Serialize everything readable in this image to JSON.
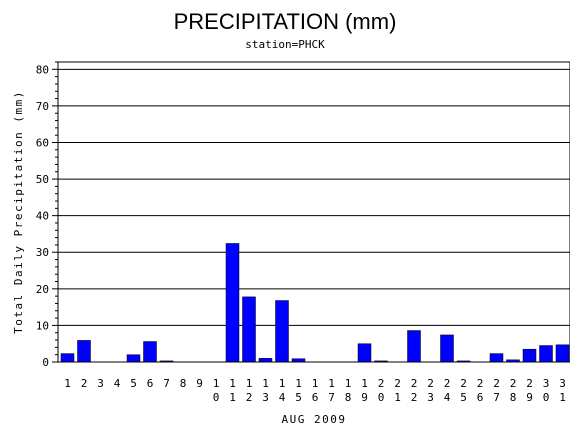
{
  "chart_data": {
    "type": "bar",
    "title": "PRECIPITATION (mm)",
    "subtitle": "station=PHCK",
    "xlabel": "AUG 2009",
    "ylabel": "Total Daily Precipitation (mm)",
    "ylim": [
      0,
      82
    ],
    "yticks": [
      0,
      10,
      20,
      30,
      40,
      50,
      60,
      70,
      80
    ],
    "grid": true,
    "bar_color": "#0000ff",
    "categories": [
      [
        "1"
      ],
      [
        "2"
      ],
      [
        "3"
      ],
      [
        "4"
      ],
      [
        "5"
      ],
      [
        "6"
      ],
      [
        "7"
      ],
      [
        "8"
      ],
      [
        "9"
      ],
      [
        "1",
        "0"
      ],
      [
        "1",
        "1"
      ],
      [
        "1",
        "2"
      ],
      [
        "1",
        "3"
      ],
      [
        "1",
        "4"
      ],
      [
        "1",
        "5"
      ],
      [
        "1",
        "6"
      ],
      [
        "1",
        "7"
      ],
      [
        "1",
        "8"
      ],
      [
        "1",
        "9"
      ],
      [
        "2",
        "0"
      ],
      [
        "2",
        "1"
      ],
      [
        "2",
        "2"
      ],
      [
        "2",
        "3"
      ],
      [
        "2",
        "4"
      ],
      [
        "2",
        "5"
      ],
      [
        "2",
        "6"
      ],
      [
        "2",
        "7"
      ],
      [
        "2",
        "8"
      ],
      [
        "2",
        "9"
      ],
      [
        "3",
        "0"
      ],
      [
        "3",
        "1"
      ]
    ],
    "values": [
      2.3,
      5.9,
      0,
      0,
      2.0,
      5.6,
      0.3,
      0,
      0,
      0,
      32.4,
      17.8,
      1.0,
      16.8,
      0.9,
      0,
      0,
      0,
      5.0,
      0.3,
      0,
      8.6,
      0,
      7.4,
      0.3,
      0,
      2.3,
      0.6,
      3.5,
      4.5,
      4.7
    ]
  }
}
